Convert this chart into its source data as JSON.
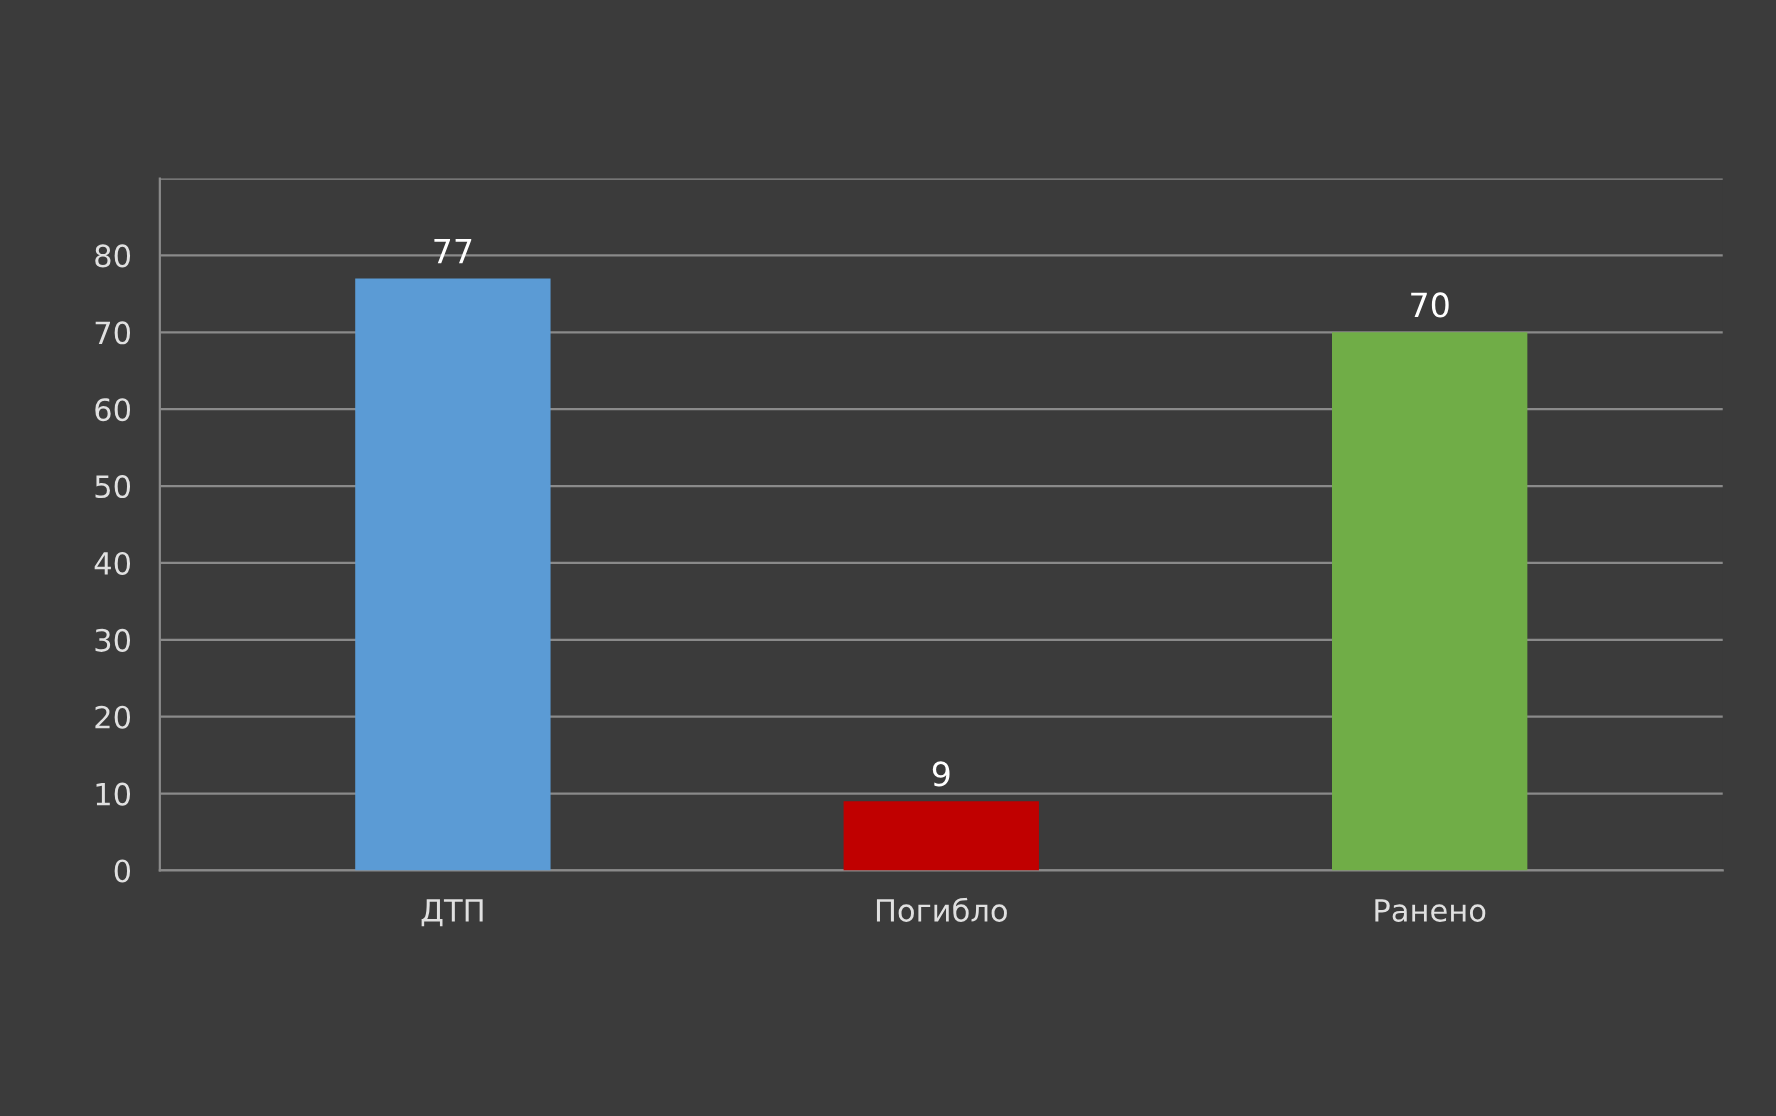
{
  "chart_data": {
    "type": "bar",
    "categories": [
      "ДТП",
      "Погибло",
      "Ранено"
    ],
    "values": [
      77,
      9,
      70
    ],
    "colors": [
      "#5b9bd5",
      "#c00000",
      "#70ad47"
    ],
    "ylim": [
      0,
      90
    ],
    "yticks": [
      0,
      10,
      20,
      30,
      40,
      50,
      60,
      70,
      80,
      {
        "value": 90,
        "label": null
      }
    ],
    "grid": "y",
    "data_labels": true
  }
}
